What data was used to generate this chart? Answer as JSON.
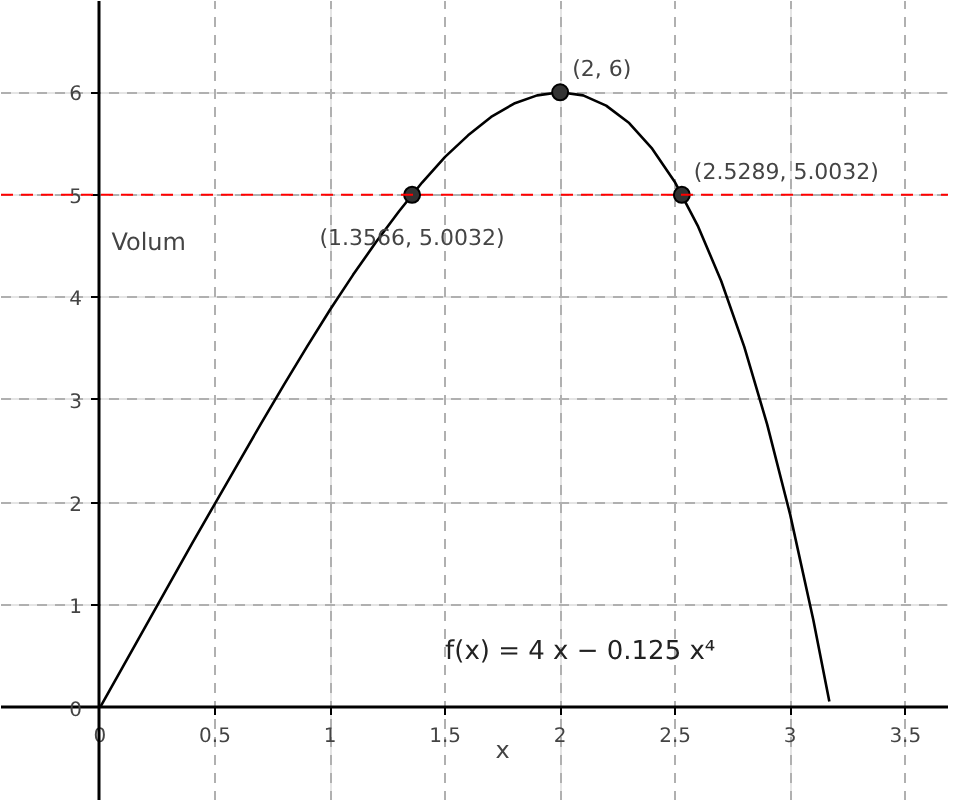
{
  "chart_data": {
    "type": "line",
    "xlabel": "x",
    "ylabel": "Volum",
    "xlim": [
      -0.43,
      3.69
    ],
    "ylim": [
      -0.91,
      6.89
    ],
    "xticks": [
      0,
      0.5,
      1,
      1.5,
      2,
      2.5,
      3,
      3.5
    ],
    "yticks": [
      0,
      1,
      2,
      3,
      4,
      5,
      6
    ],
    "grid": true,
    "series": [
      {
        "color": "#000000",
        "x": [
          0,
          0.1,
          0.2,
          0.3,
          0.4,
          0.5,
          0.6,
          0.7,
          0.8,
          0.9,
          1,
          1.1,
          1.2,
          1.3,
          1.4,
          1.5,
          1.6,
          1.7,
          1.8,
          1.9,
          2,
          2.1,
          2.2,
          2.3,
          2.4,
          2.5,
          2.6,
          2.7,
          2.8,
          2.9,
          3,
          3.1,
          3.17
        ],
        "values": [
          0,
          0.4,
          0.8,
          1.2,
          1.6,
          1.99,
          2.38,
          2.77,
          3.15,
          3.52,
          3.88,
          4.22,
          4.54,
          4.84,
          5.12,
          5.37,
          5.58,
          5.76,
          5.89,
          5.97,
          6,
          5.97,
          5.87,
          5.7,
          5.45,
          5.12,
          4.69,
          4.16,
          3.52,
          2.76,
          1.88,
          0.86,
          0.06
        ]
      },
      {
        "type": "scatter",
        "color": "#333333",
        "marker": "circle",
        "x": [
          1.3566,
          2,
          2.5289
        ],
        "values": [
          5,
          6,
          5
        ]
      }
    ],
    "ref_lines": [
      {
        "axis": "y",
        "value": 5,
        "color": "#ff0000",
        "line_style": "dashed"
      }
    ],
    "annotations": [
      {
        "text": "(1.3566, 5.0032)",
        "x": 1.3566,
        "y": 5
      },
      {
        "text": "(2, 6)",
        "x": 2,
        "y": 6
      },
      {
        "text": "(2.5289, 5.0032)",
        "x": 2.5289,
        "y": 5
      },
      "f(x) = 4 x − 0.125 x⁴"
    ]
  }
}
